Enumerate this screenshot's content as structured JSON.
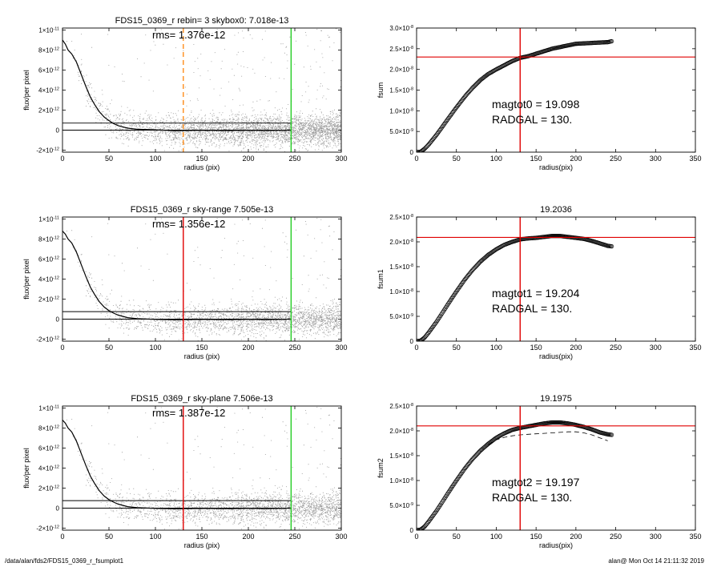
{
  "footer": {
    "path": "/data/alan/fds2/FDS15_0369_r_fsumplot1",
    "stamp": "alan@  Mon Oct 14 21:11:32 2019"
  },
  "colors": {
    "scatter": "#999999",
    "profile": "#000000",
    "frame": "#000000",
    "sky_marker_dashed": "#ff8c1a",
    "sky_marker": "#e00000",
    "outer_radius": "#22cc22",
    "fsum_hline": "#e00000",
    "fsum_vline": "#e00000"
  },
  "chart_data": [
    {
      "type": "scatter",
      "panel": "top-left",
      "title": "FDS15_0369_r rebin= 3    skybox0:  7.018e-13",
      "annotation": "rms= 1.376e-12",
      "xlabel": "radius (pix)",
      "ylabel": "flux/per pixel",
      "xlim": [
        0,
        300
      ],
      "ylim": [
        -2.2e-12,
        1.02e-11
      ],
      "xticks": [
        0,
        50,
        100,
        150,
        200,
        250,
        300
      ],
      "yticks": [
        -2e-12,
        0,
        2e-12,
        4e-12,
        6e-12,
        8e-12,
        1e-11
      ],
      "ytick_labels": [
        "-2×10⁻¹²",
        "0",
        "2×10⁻¹²",
        "4×10⁻¹²",
        "6×10⁻¹²",
        "8×10⁻¹²",
        "1×10⁻¹¹"
      ],
      "sky_level": 7.018e-13,
      "zero_line": 0,
      "sky_radius": 130,
      "sky_line_style": "dashed",
      "outer_radius": 246,
      "profile": {
        "x": [
          0,
          3,
          6,
          10,
          15,
          20,
          25,
          30,
          35,
          40,
          45,
          50,
          55,
          60,
          70,
          80,
          100,
          120,
          140,
          160,
          180,
          200,
          220,
          246
        ],
        "y": [
          9e-12,
          8.6e-12,
          8e-12,
          7.6e-12,
          6.8e-12,
          5.6e-12,
          4.4e-12,
          3.3e-12,
          2.5e-12,
          1.8e-12,
          1.3e-12,
          9.5e-13,
          6.5e-13,
          4.5e-13,
          2e-13,
          1e-13,
          3e-14,
          -5e-14,
          -3e-14,
          -2e-14,
          -4e-14,
          -1e-14,
          -3e-14,
          0
        ]
      },
      "scatter_sigma": 1.376e-12
    },
    {
      "type": "line",
      "panel": "top-right",
      "title": "",
      "xlabel": "radius(pix)",
      "ylabel": "fsum",
      "xlim": [
        0,
        350
      ],
      "ylim": [
        0,
        3e-08
      ],
      "xticks": [
        0,
        50,
        100,
        150,
        200,
        250,
        300,
        350
      ],
      "yticks": [
        0,
        5e-09,
        1e-08,
        1.5e-08,
        2e-08,
        2.5e-08,
        3e-08
      ],
      "ytick_labels": [
        "0",
        "5.0×10⁻⁹",
        "1.0×10⁻⁸",
        "1.5×10⁻⁸",
        "2.0×10⁻⁸",
        "2.5×10⁻⁸",
        "3.0×10⁻⁸"
      ],
      "hline": 2.3e-08,
      "vline": 130,
      "annotations": [
        "magtot0 =  19.098",
        "RADGAL =    130."
      ],
      "series": [
        {
          "x": [
            0,
            5,
            10,
            15,
            20,
            25,
            30,
            40,
            50,
            60,
            70,
            80,
            90,
            100,
            110,
            120,
            130,
            140,
            150,
            160,
            170,
            180,
            190,
            200,
            210,
            220,
            230,
            240,
            245
          ],
          "y": [
            0,
            1e-10,
            8e-10,
            1.8e-09,
            3e-09,
            4.2e-09,
            5.5e-09,
            8.2e-09,
            1.08e-08,
            1.33e-08,
            1.55e-08,
            1.74e-08,
            1.89e-08,
            2e-08,
            2.1e-08,
            2.2e-08,
            2.28e-08,
            2.32e-08,
            2.38e-08,
            2.44e-08,
            2.5e-08,
            2.54e-08,
            2.58e-08,
            2.62e-08,
            2.63e-08,
            2.64e-08,
            2.65e-08,
            2.66e-08,
            2.68e-08
          ]
        }
      ]
    },
    {
      "type": "scatter",
      "panel": "middle-left",
      "title": "FDS15_0369_r sky-range  7.505e-13",
      "annotation": "rms= 1.356e-12",
      "xlabel": "radius (pix)",
      "ylabel": "flux/per pixel",
      "xlim": [
        0,
        300
      ],
      "ylim": [
        -2.2e-12,
        1.02e-11
      ],
      "xticks": [
        0,
        50,
        100,
        150,
        200,
        250,
        300
      ],
      "yticks": [
        -2e-12,
        0,
        2e-12,
        4e-12,
        6e-12,
        8e-12,
        1e-11
      ],
      "ytick_labels": [
        "-2×10⁻¹²",
        "0",
        "2×10⁻¹²",
        "4×10⁻¹²",
        "6×10⁻¹²",
        "8×10⁻¹²",
        "1×10⁻¹¹"
      ],
      "sky_level": 7.505e-13,
      "zero_line": 0,
      "sky_radius": 130,
      "sky_line_style": "solid",
      "outer_radius": 246,
      "profile": {
        "x": [
          0,
          3,
          6,
          10,
          15,
          20,
          25,
          30,
          35,
          40,
          45,
          50,
          55,
          60,
          70,
          80,
          100,
          120,
          140,
          160,
          180,
          200,
          220,
          246
        ],
        "y": [
          8.8e-12,
          8.5e-12,
          8e-12,
          7.6e-12,
          6.7e-12,
          5.5e-12,
          4.3e-12,
          3.2e-12,
          2.4e-12,
          1.7e-12,
          1.2e-12,
          8.5e-13,
          6e-13,
          4e-13,
          1.5e-13,
          5e-14,
          -2e-14,
          -6e-14,
          -4e-14,
          -3e-14,
          -5e-14,
          -2e-14,
          -4e-14,
          0
        ]
      },
      "scatter_sigma": 1.356e-12
    },
    {
      "type": "line",
      "panel": "middle-right",
      "title": "19.2036",
      "xlabel": "radius(pix)",
      "ylabel": "fsum1",
      "xlim": [
        0,
        350
      ],
      "ylim": [
        0,
        2.5e-08
      ],
      "xticks": [
        0,
        50,
        100,
        150,
        200,
        250,
        300,
        350
      ],
      "yticks": [
        0,
        5e-09,
        1e-08,
        1.5e-08,
        2e-08,
        2.5e-08
      ],
      "ytick_labels": [
        "0",
        "5.0×10⁻⁹",
        "1.0×10⁻⁸",
        "1.5×10⁻⁸",
        "2.0×10⁻⁸",
        "2.5×10⁻⁸"
      ],
      "hline": 2.09e-08,
      "vline": 130,
      "annotations": [
        "magtot1 =  19.204",
        "RADGAL =    130."
      ],
      "series": [
        {
          "x": [
            0,
            5,
            10,
            15,
            20,
            25,
            30,
            40,
            50,
            60,
            70,
            80,
            90,
            100,
            110,
            120,
            130,
            140,
            150,
            160,
            170,
            180,
            190,
            200,
            210,
            220,
            230,
            240,
            245
          ],
          "y": [
            0,
            1e-10,
            7e-10,
            1.7e-09,
            2.8e-09,
            3.9e-09,
            5.1e-09,
            7.6e-09,
            1e-08,
            1.23e-08,
            1.43e-08,
            1.6e-08,
            1.74e-08,
            1.85e-08,
            1.94e-08,
            2e-08,
            2.05e-08,
            2.07e-08,
            2.08e-08,
            2.1e-08,
            2.12e-08,
            2.12e-08,
            2.1e-08,
            2.08e-08,
            2.06e-08,
            2.02e-08,
            1.97e-08,
            1.92e-08,
            1.91e-08
          ]
        }
      ]
    },
    {
      "type": "scatter",
      "panel": "bottom-left",
      "title": "FDS15_0369_r sky-plane  7.506e-13",
      "annotation": "rms= 1.387e-12",
      "xlabel": "radius (pix)",
      "ylabel": "flux/per pixel",
      "xlim": [
        0,
        300
      ],
      "ylim": [
        -2.2e-12,
        1.02e-11
      ],
      "xticks": [
        0,
        50,
        100,
        150,
        200,
        250,
        300
      ],
      "yticks": [
        -2e-12,
        0,
        2e-12,
        4e-12,
        6e-12,
        8e-12,
        1e-11
      ],
      "ytick_labels": [
        "-2×10⁻¹²",
        "0",
        "2×10⁻¹²",
        "4×10⁻¹²",
        "6×10⁻¹²",
        "8×10⁻¹²",
        "1×10⁻¹¹"
      ],
      "sky_level": 7.506e-13,
      "zero_line": 0,
      "sky_radius": 130,
      "sky_line_style": "solid",
      "outer_radius": 246,
      "profile": {
        "x": [
          0,
          3,
          6,
          10,
          15,
          20,
          25,
          30,
          35,
          40,
          45,
          50,
          55,
          60,
          70,
          80,
          100,
          120,
          140,
          160,
          180,
          200,
          220,
          246
        ],
        "y": [
          8.8e-12,
          8.5e-12,
          8e-12,
          7.6e-12,
          6.7e-12,
          5.5e-12,
          4.3e-12,
          3.2e-12,
          2.4e-12,
          1.7e-12,
          1.2e-12,
          8.5e-13,
          6e-13,
          4e-13,
          1.5e-13,
          5e-14,
          -2e-14,
          -6e-14,
          -4e-14,
          -3e-14,
          -5e-14,
          -2e-14,
          -4e-14,
          0
        ]
      },
      "scatter_sigma": 1.387e-12
    },
    {
      "type": "line",
      "panel": "bottom-right",
      "title": "19.1975",
      "xlabel": "radius(pix)",
      "ylabel": "fsum2",
      "xlim": [
        0,
        350
      ],
      "ylim": [
        0,
        2.5e-08
      ],
      "xticks": [
        0,
        50,
        100,
        150,
        200,
        250,
        300,
        350
      ],
      "yticks": [
        0,
        5e-09,
        1e-08,
        1.5e-08,
        2e-08,
        2.5e-08
      ],
      "ytick_labels": [
        "0",
        "5.0×10⁻⁹",
        "1.0×10⁻⁸",
        "1.5×10⁻⁸",
        "2.0×10⁻⁸",
        "2.5×10⁻⁸"
      ],
      "hline": 2.1e-08,
      "vline": 130,
      "annotations": [
        "magtot2 =  19.197",
        "RADGAL =    130."
      ],
      "series": [
        {
          "style": "points",
          "x": [
            0,
            5,
            10,
            15,
            20,
            25,
            30,
            40,
            50,
            60,
            70,
            80,
            90,
            100,
            110,
            120,
            130,
            140,
            150,
            160,
            170,
            180,
            190,
            200,
            210,
            220,
            230,
            240,
            245
          ],
          "y": [
            0,
            1e-10,
            7e-10,
            1.7e-09,
            2.8e-09,
            3.9e-09,
            5.1e-09,
            7.6e-09,
            1e-08,
            1.23e-08,
            1.43e-08,
            1.6e-08,
            1.74e-08,
            1.86e-08,
            1.95e-08,
            2.02e-08,
            2.06e-08,
            2.09e-08,
            2.12e-08,
            2.15e-08,
            2.17e-08,
            2.17e-08,
            2.15e-08,
            2.12e-08,
            2.08e-08,
            2.03e-08,
            1.97e-08,
            1.93e-08,
            1.92e-08
          ]
        },
        {
          "style": "dashed",
          "x": [
            90,
            100,
            110,
            120,
            130,
            140,
            150,
            160,
            170,
            180,
            190,
            200,
            210,
            220,
            230,
            240
          ],
          "y": [
            1.72e-08,
            1.82e-08,
            1.87e-08,
            1.9e-08,
            1.92e-08,
            1.93e-08,
            1.94e-08,
            1.95e-08,
            1.96e-08,
            1.97e-08,
            1.98e-08,
            1.98e-08,
            1.96e-08,
            1.92e-08,
            1.86e-08,
            1.8e-08
          ]
        }
      ]
    }
  ]
}
